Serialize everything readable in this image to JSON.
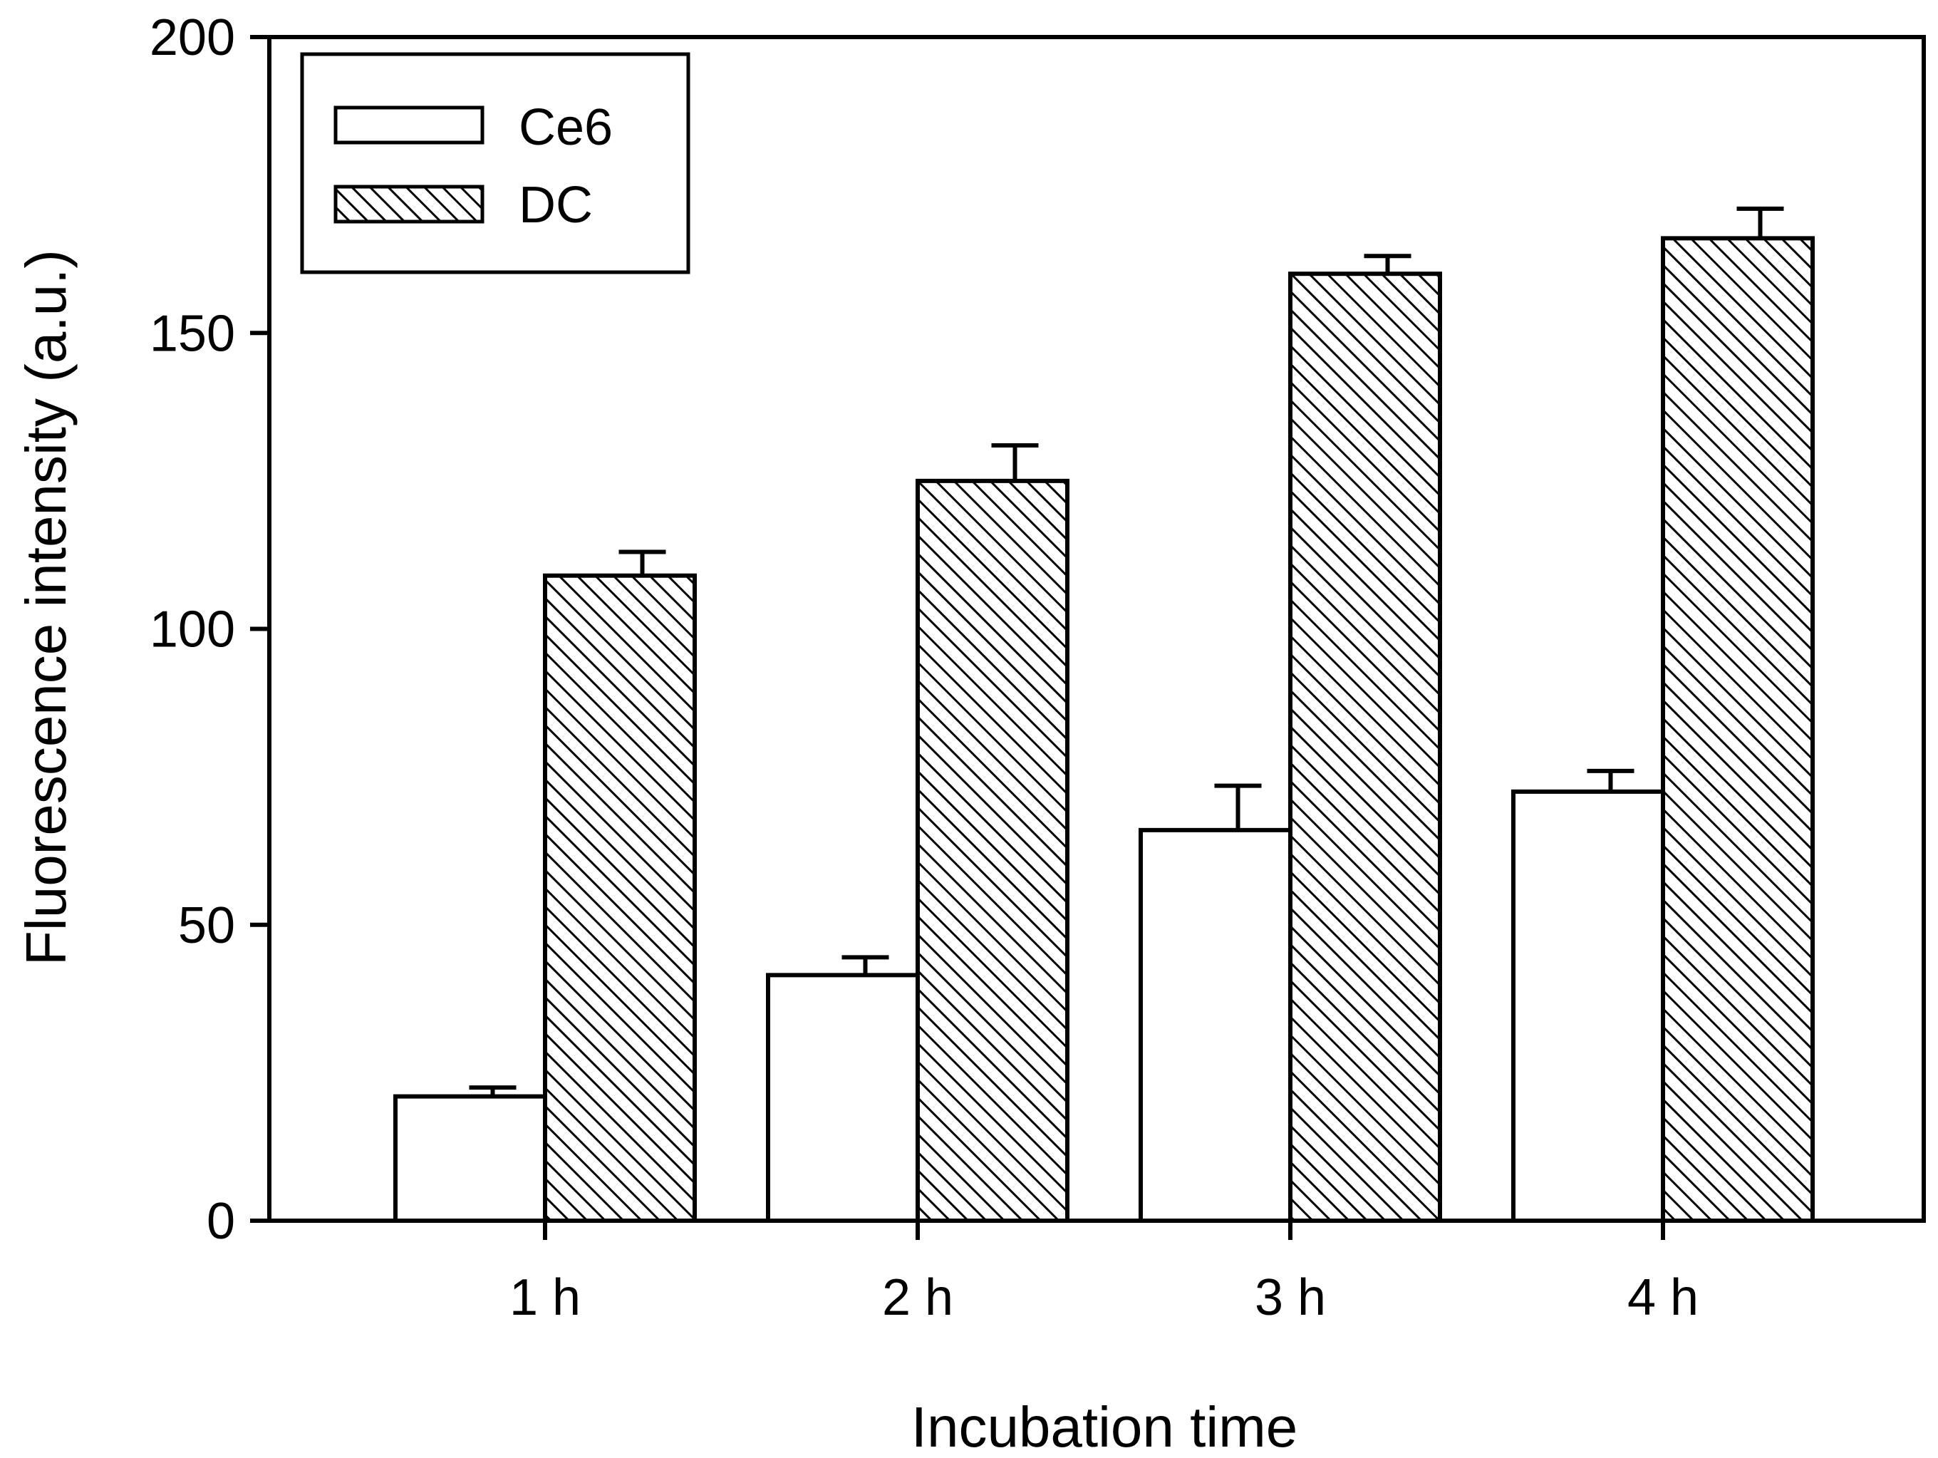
{
  "chart_data": {
    "type": "bar",
    "title": "",
    "xlabel": "Incubation time",
    "ylabel": "Fluorescence intensity (a.u.)",
    "ylim": [
      0,
      200
    ],
    "yticks": [
      0,
      50,
      100,
      150,
      200
    ],
    "categories": [
      "1 h",
      "2 h",
      "3 h",
      "4 h"
    ],
    "series": [
      {
        "name": "Ce6",
        "fill": "plain",
        "values": [
          21,
          41.5,
          66,
          72.5
        ],
        "errors": [
          1.5,
          3,
          7.5,
          3.5
        ]
      },
      {
        "name": "DC",
        "fill": "hatched",
        "values": [
          109,
          125,
          160,
          166
        ],
        "errors": [
          4,
          6,
          3,
          5
        ]
      }
    ],
    "legend_position": "top-left",
    "grid": false
  },
  "colors": {
    "ink": "#000000",
    "background": "#ffffff"
  }
}
